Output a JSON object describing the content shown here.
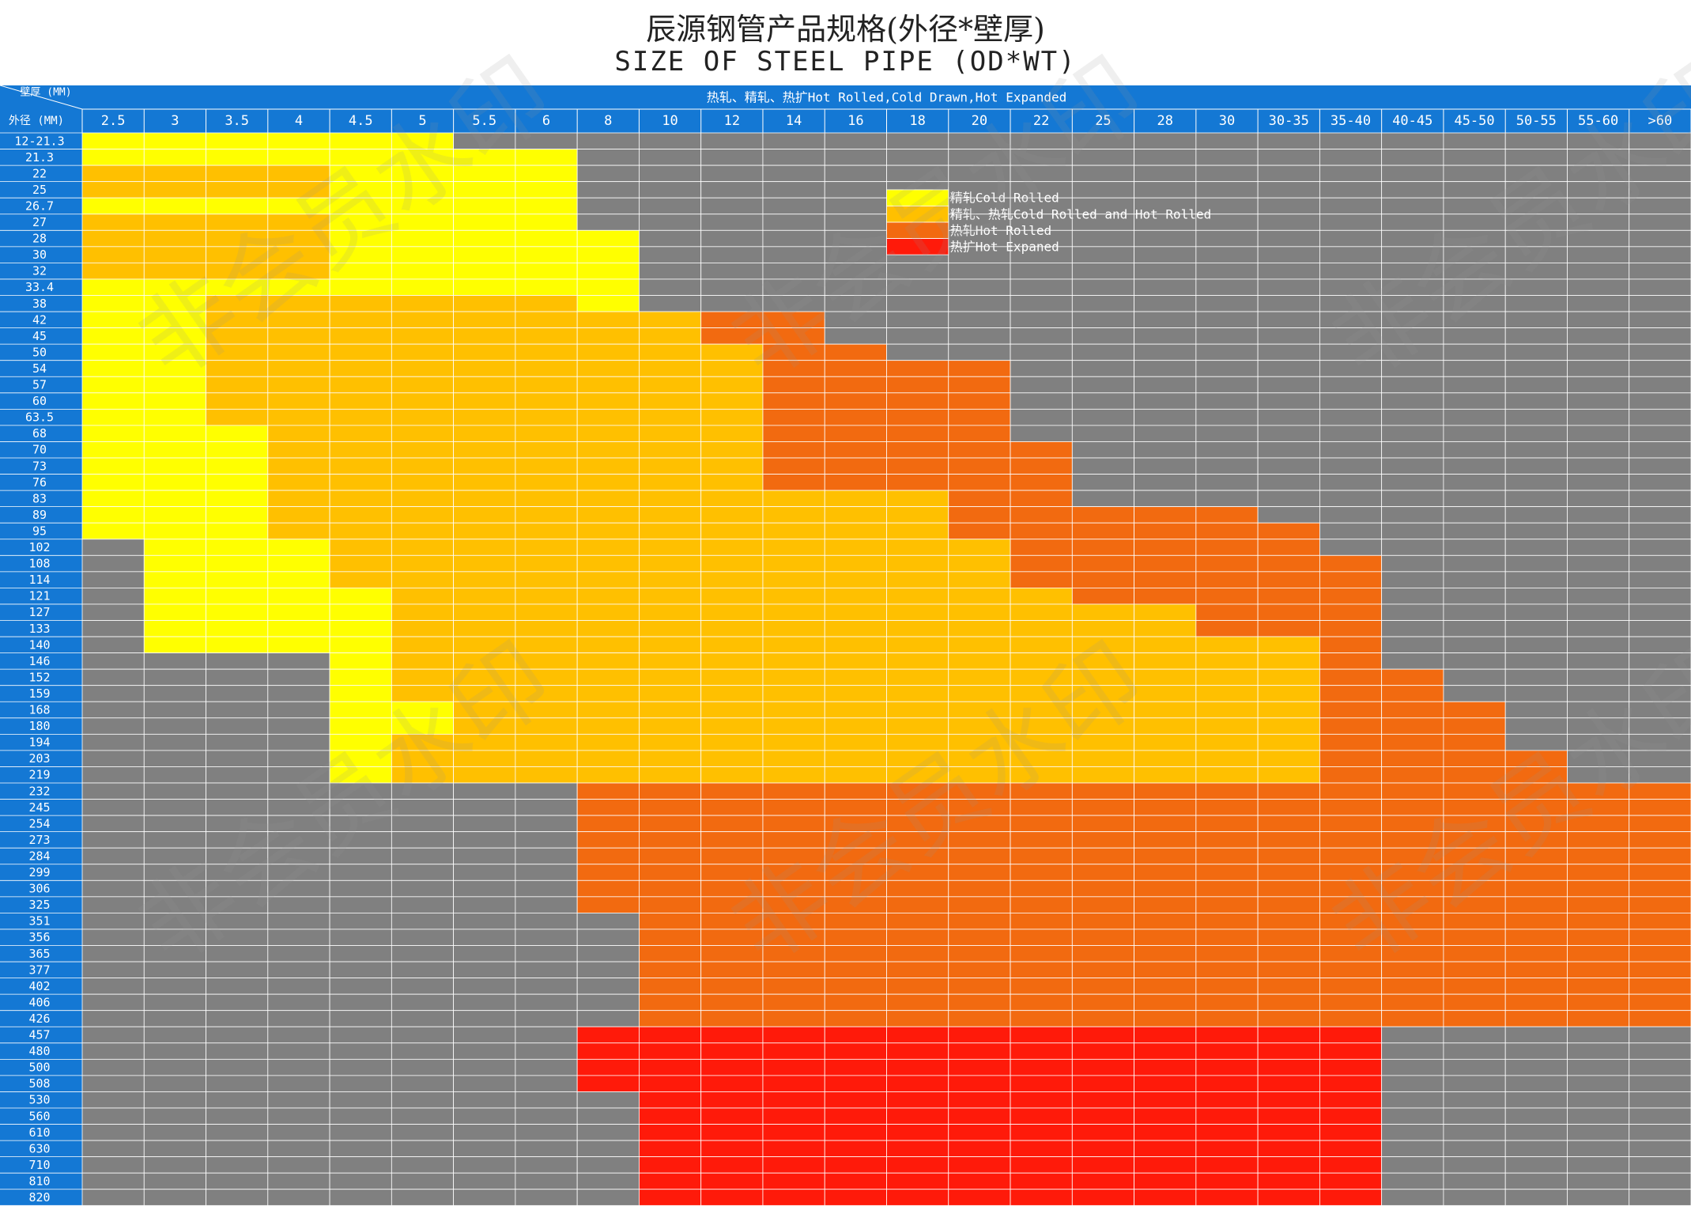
{
  "title_zh": "辰源钢管产品规格(外径*壁厚)",
  "title_en": "SIZE OF STEEL PIPE (OD*WT)",
  "corner": {
    "top": "壁厚 (MM)",
    "bottom": "外径 (MM)"
  },
  "header_span": "热轧、精轧、热扩Hot Rolled,Cold Drawn,Hot Expanded",
  "watermark": "非会员水印",
  "colors": {
    "header": "#1478d4",
    "none": "#808080",
    "cold": "#ffff00",
    "both": "#ffc000",
    "hot": "#f26a10",
    "expanded": "#ff1a0a",
    "grid_line": "#ffffff"
  },
  "legend": [
    {
      "key": "cold",
      "label": "精轧Cold Rolled"
    },
    {
      "key": "both",
      "label": "精轧、热轧Cold Rolled and Hot Rolled"
    },
    {
      "key": "hot",
      "label": "热轧Hot Rolled"
    },
    {
      "key": "expanded",
      "label": "热扩Hot Expaned"
    }
  ],
  "chart_data": {
    "type": "heatmap",
    "title": "辰源钢管产品规格(外径*壁厚)",
    "subtitle": "SIZE OF STEEL PIPE (OD*WT)",
    "xlabel": "壁厚 (MM)",
    "ylabel": "外径 (MM)",
    "columns": [
      "2.5",
      "3",
      "3.5",
      "4",
      "4.5",
      "5",
      "5.5",
      "6",
      "8",
      "10",
      "12",
      "14",
      "16",
      "18",
      "20",
      "22",
      "25",
      "28",
      "30",
      "30-35",
      "35-40",
      "40-45",
      "45-50",
      "50-55",
      "55-60",
      ">60"
    ],
    "rows": [
      "12-21.3",
      "21.3",
      "22",
      "25",
      "26.7",
      "27",
      "28",
      "30",
      "32",
      "33.4",
      "38",
      "42",
      "45",
      "50",
      "54",
      "57",
      "60",
      "63.5",
      "68",
      "70",
      "73",
      "76",
      "83",
      "89",
      "95",
      "102",
      "108",
      "114",
      "121",
      "127",
      "133",
      "140",
      "146",
      "152",
      "159",
      "168",
      "180",
      "194",
      "203",
      "219",
      "232",
      "245",
      "254",
      "273",
      "284",
      "299",
      "306",
      "325",
      "351",
      "356",
      "365",
      "377",
      "402",
      "406",
      "426",
      "457",
      "480",
      "500",
      "508",
      "530",
      "560",
      "610",
      "630",
      "710",
      "810",
      "820"
    ],
    "codes": {
      "0": "none",
      "1": "cold",
      "2": "both",
      "3": "hot",
      "4": "expanded"
    },
    "cells": [
      "11111100000000000000000000",
      "11111111000000000000000000",
      "22221111000000000000000000",
      "22221111000000000000000000",
      "11111111000000000000000000",
      "22221111000000000000000000",
      "22221111100000000000000000",
      "22221111100000000000000000",
      "22221111100000000000000000",
      "11111111100000000000000000",
      "11222222100000000000000000",
      "11222222223300000000000000",
      "11222222223300000000000000",
      "11222222222330000000000000",
      "11222222222333300000000000",
      "11222222222333300000000000",
      "11222222222333300000000000",
      "11222222222333300000000000",
      "11122222222333300000000000",
      "11122222222333330000000000",
      "11122222222333330000000000",
      "11122222222333330000000000",
      "11122222222222330000000000",
      "11122222222222333330000000",
      "11122222222222333333000000",
      "01112222222222233333000000",
      "01112222222222233333300000",
      "01112222222222233333300000",
      "01111222222222223333300000",
      "01111222222222222233300000",
      "01111222222222222233300000",
      "01111222222222222222300000",
      "00001222222222222222300000",
      "00001222222222222222330000",
      "00001222222222222222330000",
      "00001122222222222222333000",
      "00001122222222222222333000",
      "00001222222222222222333000",
      "00001222222222222222333300",
      "00001222222222222222333300",
      "00000000333333333333333333",
      "00000000333333333333333333",
      "00000000333333333333333333",
      "00000000333333333333333333",
      "00000000333333333333333333",
      "00000000333333333333333333",
      "00000000333333333333333333",
      "00000000333333333333333333",
      "00000000033333333333333333",
      "00000000033333333333333333",
      "00000000033333333333333333",
      "00000000033333333333333333",
      "00000000033333333333333333",
      "00000000033333333333333333",
      "00000000033333333333333333",
      "00000000444444444444400000",
      "00000000444444444444400000",
      "00000000444444444444400000",
      "00000000444444444444400000",
      "00000000044444444444400000",
      "00000000044444444444400000",
      "00000000044444444444400000",
      "00000000044444444444400000",
      "00000000044444444444400000",
      "00000000044444444444400000",
      "00000000044444444444400000"
    ]
  }
}
